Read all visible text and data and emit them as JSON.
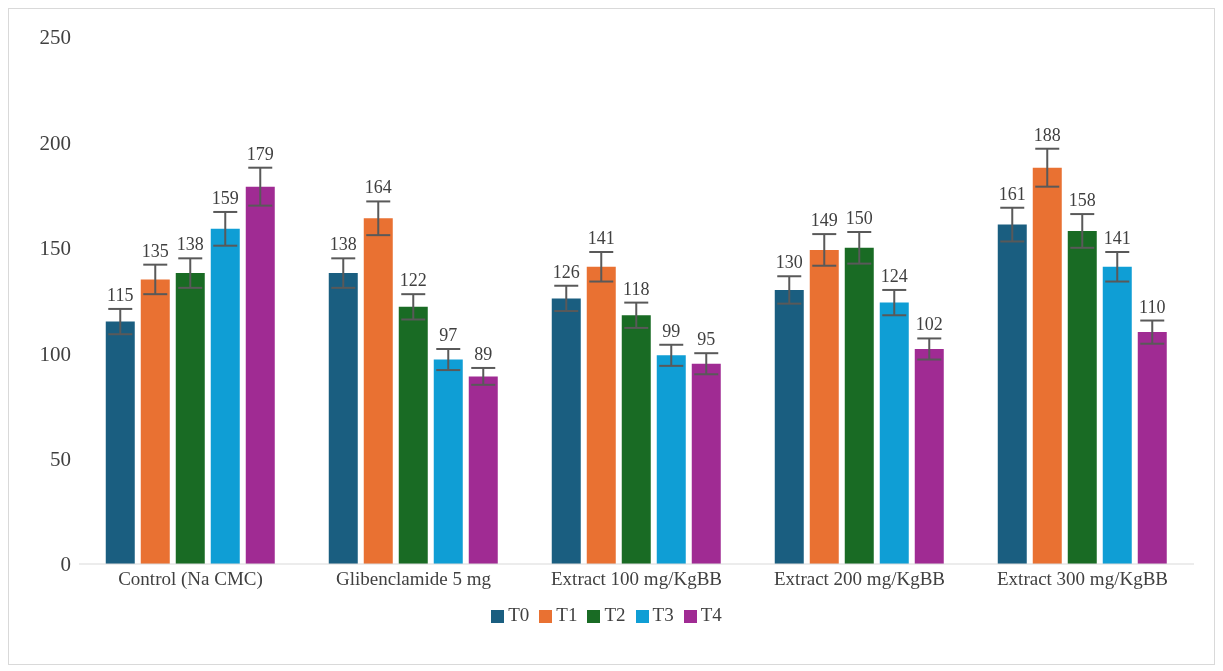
{
  "chart_data": {
    "type": "bar",
    "categories": [
      "Control (Na CMC)",
      "Glibenclamide 5 mg",
      "Extract 100 mg/KgBB",
      "Extract  200 mg/KgBB",
      "Extract 300 mg/KgBB"
    ],
    "series": [
      {
        "name": "T0",
        "color": "#1a5e80",
        "values": [
          115,
          138,
          126,
          130,
          161
        ],
        "errors": [
          6,
          7,
          6,
          6.5,
          8
        ]
      },
      {
        "name": "T1",
        "color": "#e97132",
        "values": [
          135,
          164,
          141,
          149,
          188
        ],
        "errors": [
          7,
          8,
          7,
          7.5,
          9
        ]
      },
      {
        "name": "T2",
        "color": "#196b24",
        "values": [
          138,
          122,
          118,
          150,
          158
        ],
        "errors": [
          7,
          6,
          6,
          7.5,
          8
        ]
      },
      {
        "name": "T3",
        "color": "#0f9ed5",
        "values": [
          159,
          97,
          99,
          124,
          141
        ],
        "errors": [
          8,
          5,
          5,
          6,
          7
        ]
      },
      {
        "name": "T4",
        "color": "#a02b93",
        "values": [
          179,
          89,
          95,
          102,
          110
        ],
        "errors": [
          9,
          4,
          5,
          5,
          5.5
        ]
      }
    ],
    "ylim": [
      0,
      250
    ],
    "yticks": [
      0,
      50,
      100,
      150,
      200,
      250
    ],
    "grid": false,
    "legend": "bottom",
    "data_labels": true
  }
}
